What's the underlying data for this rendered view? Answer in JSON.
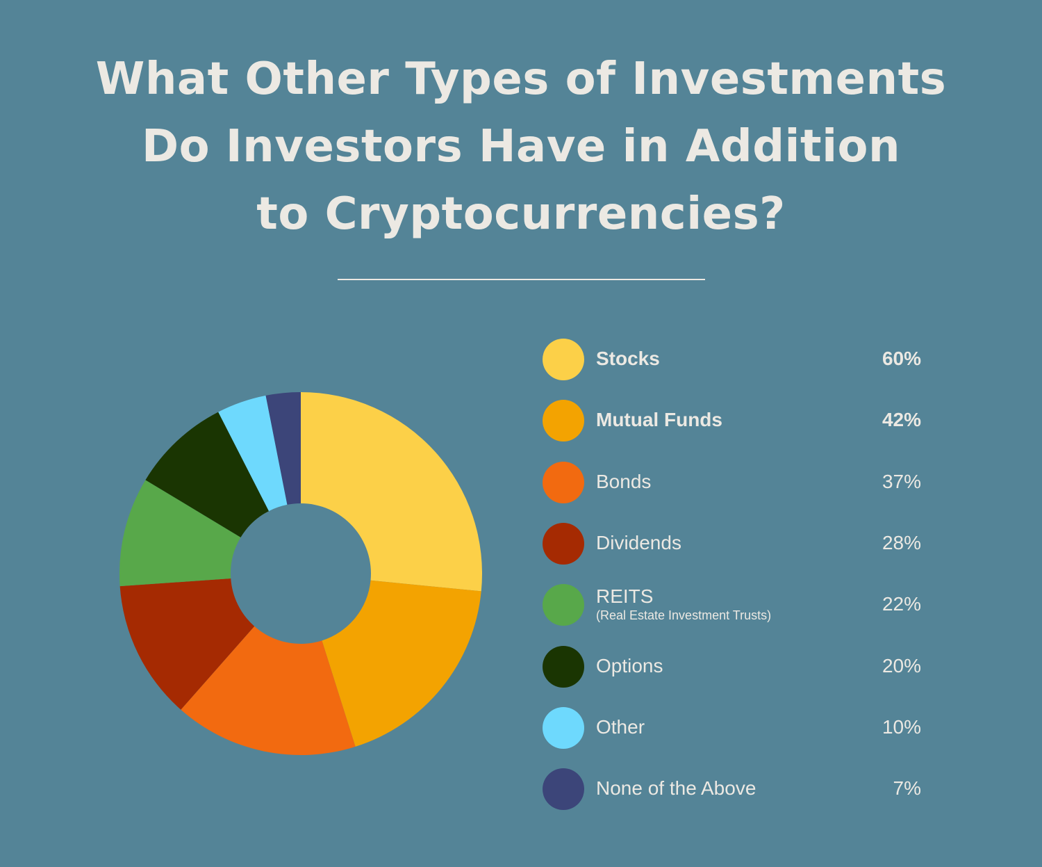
{
  "title_lines": [
    "What Other Types of Investments",
    "Do Investors Have in Addition",
    "to Cryptocurrencies?"
  ],
  "colors": {
    "background": "#548497",
    "text": "#ece9e3"
  },
  "chart_data": {
    "type": "pie",
    "donut": true,
    "title": "What Other Types of Investments Do Investors Have in Addition to Cryptocurrencies?",
    "legend_position": "right",
    "categories": [
      "Stocks",
      "Mutual Funds",
      "Bonds",
      "Dividends",
      "REITS",
      "Options",
      "Other",
      "None of the Above"
    ],
    "sublabels": [
      "",
      "",
      "",
      "",
      "(Real Estate Investment Trusts)",
      "",
      "",
      ""
    ],
    "values": [
      60,
      42,
      37,
      28,
      22,
      20,
      10,
      7
    ],
    "value_labels": [
      "60%",
      "42%",
      "37%",
      "28%",
      "22%",
      "20%",
      "10%",
      "7%"
    ],
    "bold": [
      true,
      true,
      false,
      false,
      false,
      false,
      false,
      false
    ],
    "colors": [
      "#fcd048",
      "#f3a301",
      "#f26a10",
      "#a52a02",
      "#58a84a",
      "#1a3502",
      "#6ed9fd",
      "#3c4579"
    ]
  }
}
